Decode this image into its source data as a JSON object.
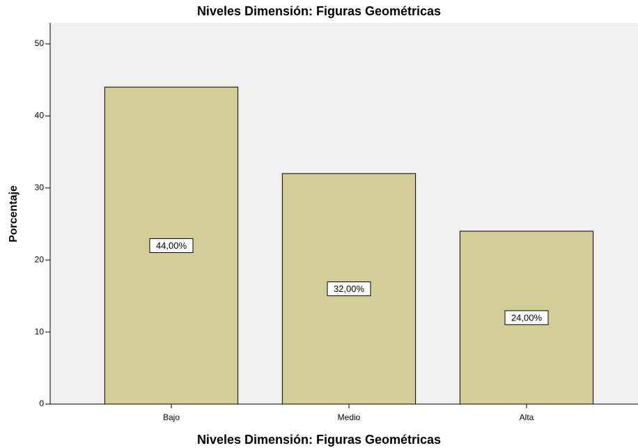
{
  "chart_data": {
    "type": "bar",
    "title": "Niveles Dimensión: Figuras Geométricas",
    "x_label": "Niveles Dimensión: Figuras Geométricas",
    "y_label": "Porcentaje",
    "categories": [
      "Bajo",
      "Medio",
      "Alta"
    ],
    "values": [
      44,
      32,
      24
    ],
    "value_labels": [
      "44,00%",
      "32,00%",
      "24,00%"
    ],
    "color": "#d3ce97",
    "ylim": [
      0,
      52.9
    ],
    "yticks": [
      0,
      10,
      20,
      30,
      40,
      50
    ],
    "grid": false
  }
}
